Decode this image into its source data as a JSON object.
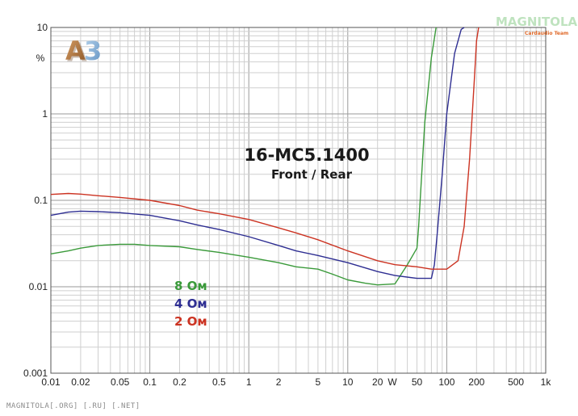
{
  "chart_data": {
    "type": "line",
    "title": "16-MC5.1400",
    "subtitle": "Front / Rear",
    "x_scale": "log",
    "y_scale": "log",
    "xlim": [
      0.01,
      1000
    ],
    "ylim": [
      0.001,
      10
    ],
    "xunit": "W",
    "yunit": "%",
    "x_ticks": [
      "0.01",
      "0.02",
      "0.05",
      "0.1",
      "0.2",
      "0.5",
      "1",
      "2",
      "5",
      "10",
      "20",
      "50",
      "100",
      "200",
      "500",
      "1k"
    ],
    "x_tick_values": [
      0.01,
      0.02,
      0.05,
      0.1,
      0.2,
      0.5,
      1,
      2,
      5,
      10,
      20,
      50,
      100,
      200,
      500,
      1000
    ],
    "y_ticks": [
      "0.001",
      "0.01",
      "0.1",
      "1",
      "10"
    ],
    "y_tick_values": [
      0.001,
      0.01,
      0.1,
      1,
      10
    ],
    "grid": true,
    "legend_placement": "bottom-left",
    "series": [
      {
        "name": "8 Ом",
        "color": "#3a9a3a",
        "x": [
          0.01,
          0.015,
          0.02,
          0.03,
          0.05,
          0.07,
          0.1,
          0.2,
          0.3,
          0.5,
          1,
          2,
          3,
          5,
          7,
          10,
          15,
          20,
          30,
          40,
          50,
          52,
          55,
          60,
          70,
          78
        ],
        "y": [
          0.024,
          0.026,
          0.028,
          0.03,
          0.031,
          0.031,
          0.03,
          0.029,
          0.027,
          0.025,
          0.022,
          0.019,
          0.017,
          0.016,
          0.014,
          0.012,
          0.011,
          0.0105,
          0.0108,
          0.018,
          0.028,
          0.05,
          0.15,
          0.8,
          4.5,
          10
        ]
      },
      {
        "name": "4 Ом",
        "color": "#2e2e92",
        "x": [
          0.01,
          0.015,
          0.02,
          0.03,
          0.05,
          0.1,
          0.2,
          0.3,
          0.5,
          1,
          2,
          3,
          5,
          10,
          20,
          30,
          50,
          70,
          75,
          80,
          90,
          100,
          120,
          140,
          150
        ],
        "y": [
          0.067,
          0.073,
          0.075,
          0.074,
          0.072,
          0.067,
          0.058,
          0.052,
          0.046,
          0.038,
          0.03,
          0.026,
          0.023,
          0.019,
          0.015,
          0.0135,
          0.0125,
          0.0125,
          0.018,
          0.04,
          0.2,
          1.0,
          5.0,
          9.5,
          10
        ]
      },
      {
        "name": "2 Ом",
        "color": "#cc3322",
        "x": [
          0.01,
          0.015,
          0.02,
          0.03,
          0.05,
          0.1,
          0.2,
          0.3,
          0.5,
          1,
          2,
          3,
          5,
          10,
          20,
          30,
          50,
          70,
          100,
          130,
          150,
          170,
          190,
          200,
          210
        ],
        "y": [
          0.117,
          0.12,
          0.118,
          0.113,
          0.108,
          0.1,
          0.087,
          0.077,
          0.07,
          0.06,
          0.048,
          0.042,
          0.035,
          0.026,
          0.02,
          0.018,
          0.017,
          0.016,
          0.016,
          0.02,
          0.05,
          0.3,
          2.5,
          7.0,
          10
        ]
      }
    ]
  },
  "branding": {
    "logo_text": "A3",
    "brand_name": "MAGNITOLA",
    "brand_sub": "Cardaudio Team",
    "footer": "MAGNITOLA[.ORG] [.RU] [.NET]"
  }
}
